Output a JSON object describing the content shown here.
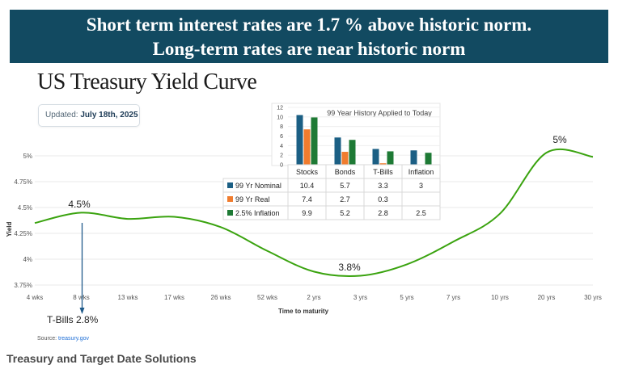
{
  "banner": {
    "line1": "Short term interest rates are 1.7 % above historic norm.",
    "line2": "Long-term rates are near historic norm"
  },
  "page_title": "US Treasury Yield Curve",
  "updated": {
    "label": "Updated:",
    "date": "July 18th, 2025"
  },
  "source": {
    "label": "Source:",
    "link": "treasury.gov"
  },
  "footer": "Treasury and Target Date Solutions",
  "colors": {
    "curve": "#3aa30f",
    "nominal": "#1b5f84",
    "real": "#f07c2e",
    "inflation": "#1e7a35",
    "arrow": "#1f5a8a"
  },
  "chart_data": [
    {
      "type": "line",
      "title": "",
      "xlabel": "Time to maturity",
      "ylabel": "Yield",
      "x": [
        "4 wks",
        "8 wks",
        "13 wks",
        "17 wks",
        "26 wks",
        "52 wks",
        "2 yrs",
        "3 yrs",
        "5 yrs",
        "7 yrs",
        "10 yrs",
        "20 yrs",
        "30 yrs"
      ],
      "series": [
        {
          "values": [
            4.35,
            4.45,
            4.39,
            4.41,
            4.31,
            4.08,
            3.88,
            3.84,
            3.95,
            4.17,
            4.44,
            5.03,
            4.99
          ]
        }
      ],
      "yticks": [
        "3.75%",
        "4%",
        "4.25%",
        "4.5%",
        "4.75%",
        "5%"
      ],
      "ylim": [
        3.75,
        5.0
      ],
      "annotations": [
        {
          "text": "4.5%",
          "at": "8 wks"
        },
        {
          "text": "3.8%",
          "at": "3 yrs"
        },
        {
          "text": "5%",
          "at": "20 yrs"
        },
        {
          "text": "T-Bills 2.8%",
          "at": "8 wks"
        }
      ]
    },
    {
      "type": "bar",
      "title": "99 Year History Applied to Today",
      "categories": [
        "Stocks",
        "Bonds",
        "T-Bills",
        "Inflation"
      ],
      "ylim": [
        0,
        12
      ],
      "yticks": [
        "0",
        "2",
        "4",
        "6",
        "8",
        "10",
        "12"
      ],
      "series": [
        {
          "name": "99 Yr Nominal",
          "values": [
            10.4,
            5.7,
            3.3,
            3
          ]
        },
        {
          "name": "99 Yr Real",
          "values": [
            7.4,
            2.7,
            0.3,
            null
          ]
        },
        {
          "name": "2.5% Inflation",
          "values": [
            9.9,
            5.2,
            2.8,
            2.5
          ]
        }
      ],
      "table": {
        "headers": [
          "Stocks",
          "Bonds",
          "T-Bills",
          "Inflation"
        ],
        "rows": [
          {
            "name": "99 Yr Nominal",
            "cells": [
              "10.4",
              "5.7",
              "3.3",
              "3"
            ]
          },
          {
            "name": "99 Yr Real",
            "cells": [
              "7.4",
              "2.7",
              "0.3",
              ""
            ]
          },
          {
            "name": "2.5% Inflation",
            "cells": [
              "9.9",
              "5.2",
              "2.8",
              "2.5"
            ]
          }
        ]
      }
    }
  ]
}
